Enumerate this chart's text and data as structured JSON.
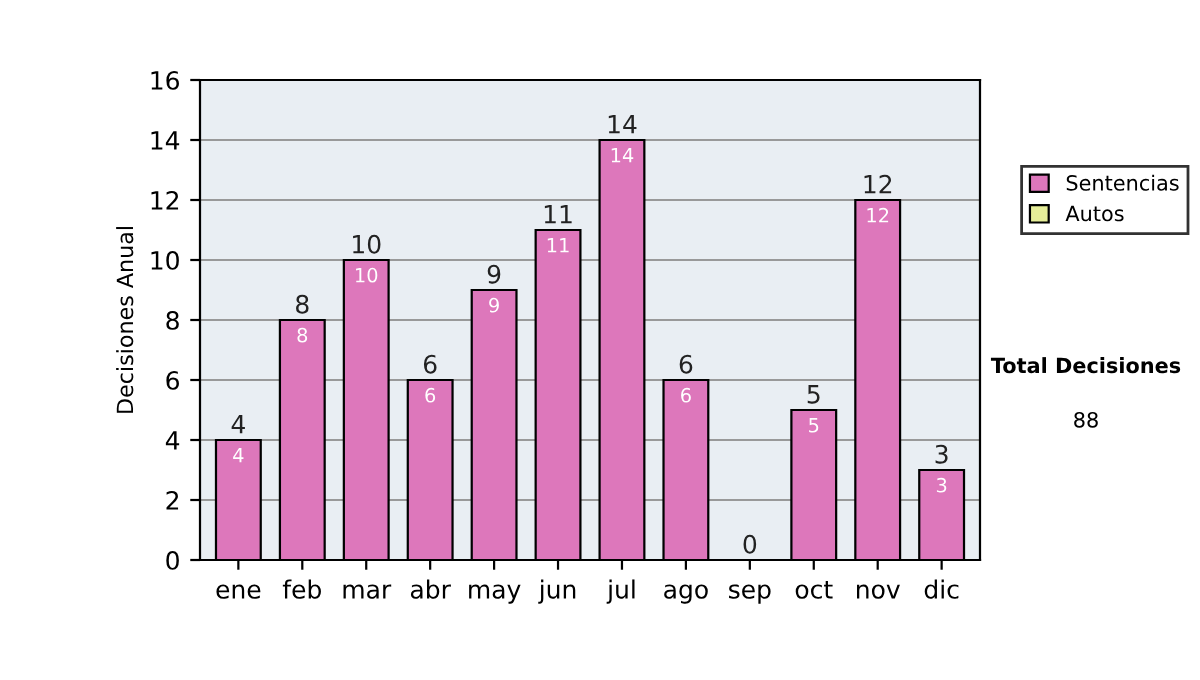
{
  "chart_data": {
    "type": "bar",
    "ylabel": "Decisiones Anual",
    "categories": [
      "ene",
      "feb",
      "mar",
      "abr",
      "may",
      "jun",
      "jul",
      "ago",
      "sep",
      "oct",
      "nov",
      "dic"
    ],
    "series": [
      {
        "name": "Sentencias",
        "color": "#dd77bb",
        "values": [
          4,
          8,
          10,
          6,
          9,
          11,
          14,
          6,
          0,
          5,
          12,
          3
        ],
        "value_labels": [
          "4",
          "8",
          "10",
          "6",
          "9",
          "11",
          "14",
          "6",
          null,
          "5",
          "12",
          "3"
        ]
      },
      {
        "name": "Autos",
        "color": "#e6ee99",
        "values": [
          0,
          0,
          0,
          0,
          0,
          0,
          0,
          0,
          0,
          0,
          0,
          0
        ]
      }
    ],
    "stacked": true,
    "totals": [
      "4",
      "8",
      "10",
      "6",
      "9",
      "11",
      "14",
      "6",
      "0",
      "5",
      "12",
      "3"
    ],
    "ylim": [
      0,
      16
    ],
    "yticks": [
      0,
      2,
      4,
      6,
      8,
      10,
      12,
      14,
      16
    ],
    "grid": "y",
    "legend": "right",
    "annotations": [
      "Total Decisiones",
      "88"
    ]
  }
}
